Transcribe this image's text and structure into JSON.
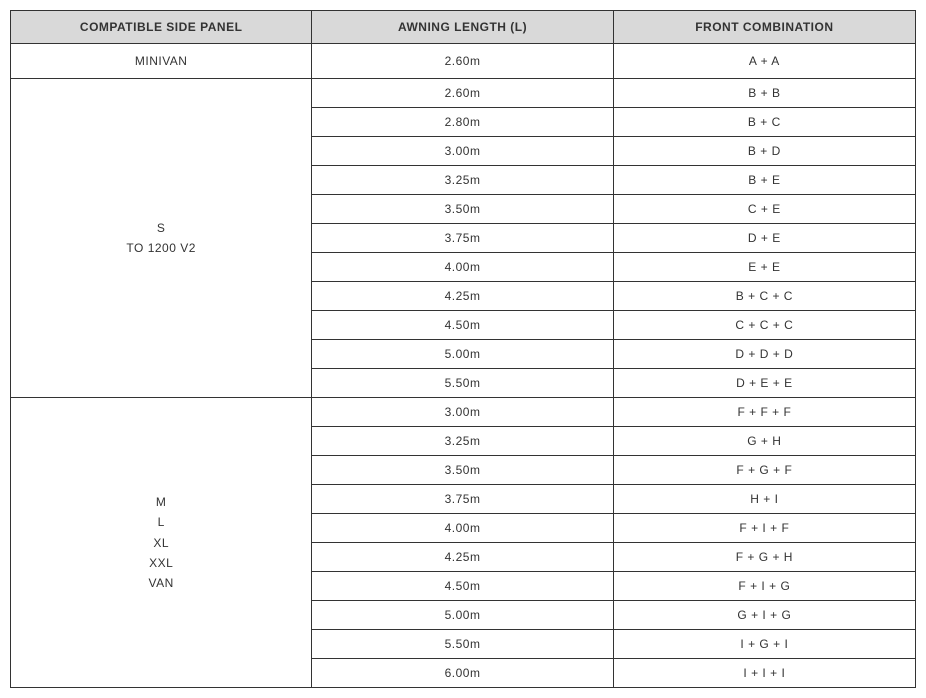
{
  "headers": {
    "panel": "COMPATIBLE SIDE PANEL",
    "length": "AWNING LENGTH (L)",
    "combination": "FRONT COMBINATION"
  },
  "groups": [
    {
      "panel_lines": [
        "MINIVAN"
      ],
      "rows": [
        {
          "length": "2.60m",
          "combination": "A + A"
        }
      ]
    },
    {
      "panel_lines": [
        "S",
        "TO 1200 V2"
      ],
      "rows": [
        {
          "length": "2.60m",
          "combination": "B + B"
        },
        {
          "length": "2.80m",
          "combination": "B + C"
        },
        {
          "length": "3.00m",
          "combination": "B + D"
        },
        {
          "length": "3.25m",
          "combination": "B + E"
        },
        {
          "length": "3.50m",
          "combination": "C + E"
        },
        {
          "length": "3.75m",
          "combination": "D + E"
        },
        {
          "length": "4.00m",
          "combination": "E + E"
        },
        {
          "length": "4.25m",
          "combination": "B + C + C"
        },
        {
          "length": "4.50m",
          "combination": "C + C + C"
        },
        {
          "length": "5.00m",
          "combination": "D + D + D"
        },
        {
          "length": "5.50m",
          "combination": "D + E + E"
        }
      ]
    },
    {
      "panel_lines": [
        "M",
        "L",
        "XL",
        "XXL",
        "VAN"
      ],
      "rows": [
        {
          "length": "3.00m",
          "combination": "F + F + F"
        },
        {
          "length": "3.25m",
          "combination": "G + H"
        },
        {
          "length": "3.50m",
          "combination": "F + G + F"
        },
        {
          "length": "3.75m",
          "combination": "H + I"
        },
        {
          "length": "4.00m",
          "combination": "F + I + F"
        },
        {
          "length": "4.25m",
          "combination": "F + G + H"
        },
        {
          "length": "4.50m",
          "combination": "F + I + G"
        },
        {
          "length": "5.00m",
          "combination": "G + I + G"
        },
        {
          "length": "5.50m",
          "combination": "I + G + I"
        },
        {
          "length": "6.00m",
          "combination": "I + I + I"
        }
      ]
    }
  ],
  "style": {
    "header_bg": "#d9d9d9",
    "border_color": "#333333",
    "text_color": "#333333",
    "font_size_header": 12,
    "font_size_cell": 12,
    "background_color": "#ffffff"
  }
}
